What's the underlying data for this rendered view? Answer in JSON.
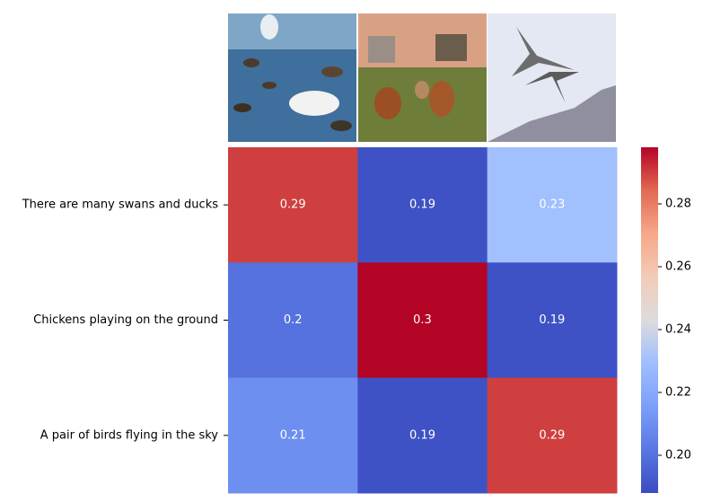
{
  "chart_data": {
    "type": "heatmap",
    "row_labels": [
      "There are many swans and ducks",
      "Chickens playing on the ground",
      "A pair of birds flying in the sky"
    ],
    "values": [
      [
        0.29,
        0.19,
        0.23
      ],
      [
        0.2,
        0.3,
        0.19
      ],
      [
        0.21,
        0.19,
        0.29
      ]
    ],
    "colormap": "coolwarm",
    "zlim": [
      0.188,
      0.298
    ],
    "zticks": [
      {
        "value": 0.2,
        "label": "0.20"
      },
      {
        "value": 0.22,
        "label": "0.22"
      },
      {
        "value": 0.24,
        "label": "0.24"
      },
      {
        "value": 0.26,
        "label": "0.26"
      },
      {
        "value": 0.28,
        "label": "0.28"
      }
    ]
  }
}
